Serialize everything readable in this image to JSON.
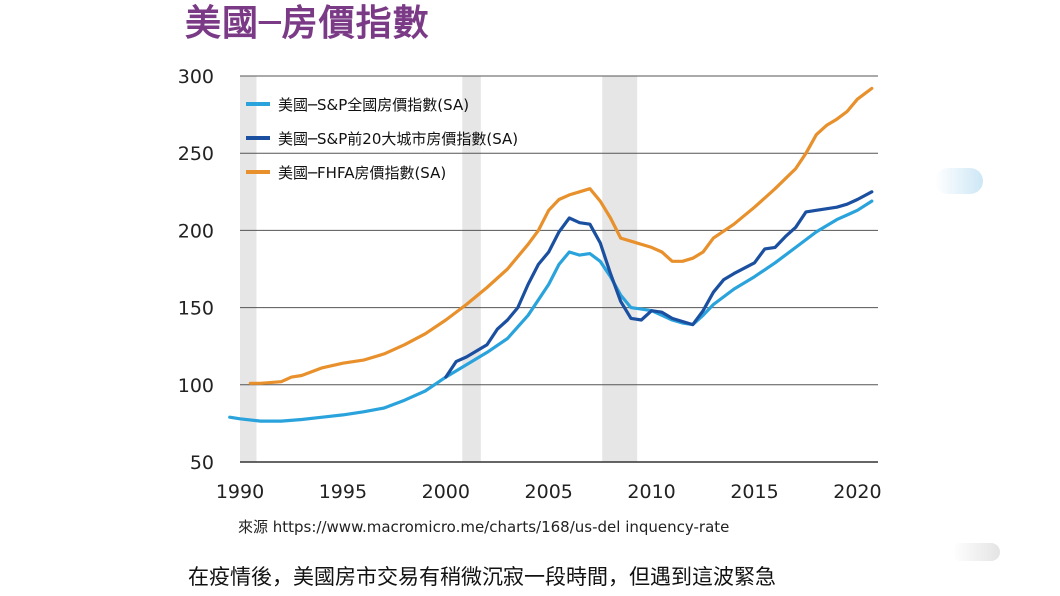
{
  "title": "美國─房價指數",
  "source_text": "來源 https://www.macromicro.me/charts/168/us-del inquency-rate",
  "body_text": "在疫情後，美國房市交易有稍微沉寂一段時間，但遇到這波緊急",
  "chart_data": {
    "type": "line",
    "title": "美國─房價指數",
    "xlabel": "",
    "ylabel": "",
    "xlim": [
      1990,
      2021
    ],
    "ylim": [
      50,
      300
    ],
    "x_ticks": [
      1990,
      1995,
      2000,
      2005,
      2010,
      2015,
      2020
    ],
    "y_ticks": [
      50,
      100,
      150,
      200,
      250,
      300
    ],
    "grid": true,
    "legend_position": "top-left",
    "recession_bands": [
      [
        1990.0,
        1990.8
      ],
      [
        2000.8,
        2001.7
      ],
      [
        2007.6,
        2009.3
      ]
    ],
    "series": [
      {
        "name": "美國─S&P全國房價指數(SA)",
        "color": "#2aa3dc",
        "points": [
          [
            1989.5,
            79
          ],
          [
            1990,
            78
          ],
          [
            1991,
            76.5
          ],
          [
            1992,
            76.5
          ],
          [
            1993,
            77.5
          ],
          [
            1994,
            79
          ],
          [
            1995,
            80.5
          ],
          [
            1996,
            82.5
          ],
          [
            1997,
            85
          ],
          [
            1998,
            90
          ],
          [
            1999,
            96
          ],
          [
            2000,
            105
          ],
          [
            2001,
            113
          ],
          [
            2002,
            121
          ],
          [
            2003,
            130
          ],
          [
            2004,
            145
          ],
          [
            2005,
            165
          ],
          [
            2005.5,
            178
          ],
          [
            2006,
            186
          ],
          [
            2006.5,
            184
          ],
          [
            2007,
            185
          ],
          [
            2007.5,
            180
          ],
          [
            2008,
            170
          ],
          [
            2008.5,
            158
          ],
          [
            2009,
            150
          ],
          [
            2009.5,
            149
          ],
          [
            2010,
            148
          ],
          [
            2010.5,
            145
          ],
          [
            2011,
            142
          ],
          [
            2011.5,
            140
          ],
          [
            2012,
            139
          ],
          [
            2012.5,
            145
          ],
          [
            2013,
            152
          ],
          [
            2014,
            162
          ],
          [
            2015,
            170
          ],
          [
            2016,
            179
          ],
          [
            2017,
            189
          ],
          [
            2018,
            199
          ],
          [
            2019,
            207
          ],
          [
            2019.5,
            210
          ],
          [
            2020,
            213
          ],
          [
            2020.7,
            219
          ]
        ]
      },
      {
        "name": "美國─S&P前20大城市房價指數(SA)",
        "color": "#1b4fa0",
        "points": [
          [
            2000,
            105
          ],
          [
            2000.5,
            115
          ],
          [
            2001,
            118
          ],
          [
            2002,
            126
          ],
          [
            2002.5,
            136
          ],
          [
            2003,
            142
          ],
          [
            2003.5,
            150
          ],
          [
            2004,
            165
          ],
          [
            2004.5,
            178
          ],
          [
            2005,
            186
          ],
          [
            2005.5,
            199
          ],
          [
            2006,
            208
          ],
          [
            2006.5,
            205
          ],
          [
            2007,
            204
          ],
          [
            2007.5,
            192
          ],
          [
            2008,
            172
          ],
          [
            2008.5,
            154
          ],
          [
            2009,
            143
          ],
          [
            2009.5,
            142
          ],
          [
            2010,
            148
          ],
          [
            2010.5,
            147
          ],
          [
            2011,
            143
          ],
          [
            2011.5,
            141
          ],
          [
            2012,
            139
          ],
          [
            2012.5,
            148
          ],
          [
            2013,
            160
          ],
          [
            2013.5,
            168
          ],
          [
            2014,
            172
          ],
          [
            2015,
            179
          ],
          [
            2015.5,
            188
          ],
          [
            2016,
            189
          ],
          [
            2016.5,
            196
          ],
          [
            2017,
            202
          ],
          [
            2017.5,
            212
          ],
          [
            2018,
            213
          ],
          [
            2019,
            215
          ],
          [
            2019.5,
            217
          ],
          [
            2020,
            220
          ],
          [
            2020.7,
            225
          ]
        ]
      },
      {
        "name": "美國─FHFA房價指數(SA)",
        "color": "#e8902c",
        "points": [
          [
            1990.5,
            101
          ],
          [
            1991,
            101
          ],
          [
            1992,
            102
          ],
          [
            1992.5,
            105
          ],
          [
            1993,
            106
          ],
          [
            1994,
            111
          ],
          [
            1995,
            114
          ],
          [
            1996,
            116
          ],
          [
            1997,
            120
          ],
          [
            1998,
            126
          ],
          [
            1999,
            133
          ],
          [
            2000,
            142
          ],
          [
            2001,
            152
          ],
          [
            2002,
            163
          ],
          [
            2003,
            175
          ],
          [
            2004,
            191
          ],
          [
            2004.5,
            200
          ],
          [
            2005,
            213
          ],
          [
            2005.5,
            220
          ],
          [
            2006,
            223
          ],
          [
            2006.5,
            225
          ],
          [
            2007,
            227
          ],
          [
            2007.5,
            219
          ],
          [
            2008,
            208
          ],
          [
            2008.5,
            195
          ],
          [
            2009,
            193
          ],
          [
            2010,
            189
          ],
          [
            2010.5,
            186
          ],
          [
            2011,
            180
          ],
          [
            2011.5,
            180
          ],
          [
            2012,
            182
          ],
          [
            2012.5,
            186
          ],
          [
            2013,
            195
          ],
          [
            2014,
            204
          ],
          [
            2015,
            215
          ],
          [
            2016,
            227
          ],
          [
            2017,
            240
          ],
          [
            2017.5,
            250
          ],
          [
            2018,
            262
          ],
          [
            2018.5,
            268
          ],
          [
            2019,
            272
          ],
          [
            2019.5,
            277
          ],
          [
            2020,
            285
          ],
          [
            2020.7,
            292
          ]
        ]
      }
    ]
  }
}
